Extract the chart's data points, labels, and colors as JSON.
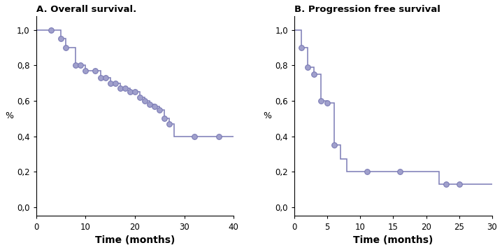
{
  "panel_A": {
    "title": "A. Overall survival.",
    "xlabel": "Time (months)",
    "ylabel": "%",
    "xlim": [
      0,
      40
    ],
    "ylim": [
      -0.05,
      1.08
    ],
    "xticks": [
      0,
      10,
      20,
      30,
      40
    ],
    "yticks": [
      0.0,
      0.2,
      0.4,
      0.6,
      0.8,
      1.0
    ],
    "ytick_labels": [
      "0,0",
      "0,2",
      "0,4",
      "0,6",
      "0,8",
      "1,0"
    ],
    "km_times": [
      0,
      3,
      5,
      6,
      7,
      8,
      9,
      10,
      12,
      13,
      14,
      15,
      16,
      17,
      18,
      19,
      20,
      21,
      22,
      23,
      24,
      25,
      26,
      27,
      28,
      32,
      37
    ],
    "km_surv": [
      1.0,
      1.0,
      0.95,
      0.9,
      0.9,
      0.8,
      0.8,
      0.77,
      0.77,
      0.73,
      0.73,
      0.7,
      0.7,
      0.67,
      0.67,
      0.65,
      0.65,
      0.62,
      0.6,
      0.58,
      0.57,
      0.55,
      0.5,
      0.47,
      0.4,
      0.4,
      0.4
    ],
    "censor_x": [
      3,
      5,
      6,
      8,
      9,
      10,
      12,
      13,
      14,
      15,
      16,
      17,
      18,
      19,
      20,
      21,
      22,
      23,
      24,
      25,
      26,
      27,
      32,
      37
    ],
    "censor_y": [
      1.0,
      0.95,
      0.9,
      0.8,
      0.8,
      0.77,
      0.77,
      0.73,
      0.73,
      0.7,
      0.7,
      0.67,
      0.67,
      0.65,
      0.65,
      0.62,
      0.6,
      0.58,
      0.57,
      0.55,
      0.5,
      0.47,
      0.4,
      0.4
    ],
    "line_color": "#7b7bb5",
    "marker_facecolor": "#a0a0cc",
    "marker_edgecolor": "#7b7bb5",
    "marker_size": 5.5
  },
  "panel_B": {
    "title": "B. Progression free survival",
    "xlabel": "Time (months)",
    "ylabel": "%",
    "xlim": [
      0,
      30
    ],
    "ylim": [
      -0.05,
      1.08
    ],
    "xticks": [
      0,
      5,
      10,
      15,
      20,
      25,
      30
    ],
    "yticks": [
      0.0,
      0.2,
      0.4,
      0.6,
      0.8,
      1.0
    ],
    "ytick_labels": [
      "0,0",
      "0,2",
      "0,4",
      "0,6",
      "0,8",
      "1,0"
    ],
    "km_times": [
      0,
      1,
      2,
      3,
      4,
      5,
      6,
      7,
      8,
      11,
      16,
      22,
      25
    ],
    "km_surv": [
      1.0,
      0.9,
      0.79,
      0.75,
      0.6,
      0.59,
      0.35,
      0.27,
      0.2,
      0.2,
      0.2,
      0.13,
      0.13
    ],
    "censor_x": [
      1,
      2,
      3,
      4,
      5,
      6,
      11,
      16,
      23,
      25
    ],
    "censor_y": [
      0.9,
      0.79,
      0.75,
      0.6,
      0.59,
      0.35,
      0.2,
      0.2,
      0.13,
      0.13
    ],
    "line_color": "#7b7bb5",
    "marker_facecolor": "#a0a0cc",
    "marker_edgecolor": "#7b7bb5",
    "marker_size": 5.5
  },
  "figure_bg": "#ffffff",
  "axes_bg": "#ffffff"
}
